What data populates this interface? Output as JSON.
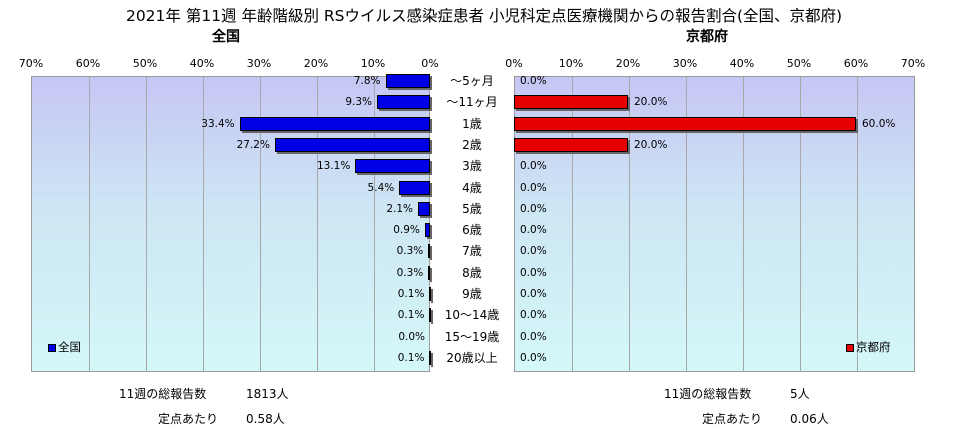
{
  "chart_data": {
    "type": "bar",
    "title": "2021年 第11週 年齢階級別 RSウイルス感染症患者 小児科定点医療機関からの報告割合(全国、京都府)",
    "xlim": [
      0,
      70
    ],
    "ticks": [
      "70%",
      "60%",
      "50%",
      "40%",
      "30%",
      "20%",
      "10%",
      "0%",
      "10%",
      "20%",
      "30%",
      "40%",
      "50%",
      "60%",
      "70%"
    ],
    "categories": [
      "～5ヶ月",
      "～11ヶ月",
      "1歳",
      "2歳",
      "3歳",
      "4歳",
      "5歳",
      "6歳",
      "7歳",
      "8歳",
      "9歳",
      "10～14歳",
      "15～19歳",
      "20歳以上"
    ],
    "series": [
      {
        "name": "全国",
        "subtitle": "全国",
        "color": "#0000e6",
        "values": [
          7.8,
          9.3,
          33.4,
          27.2,
          13.1,
          5.4,
          2.1,
          0.9,
          0.3,
          0.3,
          0.1,
          0.1,
          0.0,
          0.1
        ],
        "labels": [
          "7.8%",
          "9.3%",
          "33.4%",
          "27.2%",
          "13.1%",
          "5.4%",
          "2.1%",
          "0.9%",
          "0.3%",
          "0.3%",
          "0.1%",
          "0.1%",
          "0.0%",
          "0.1%"
        ]
      },
      {
        "name": "京都府",
        "subtitle": "京都府",
        "color": "#e60000",
        "values": [
          0.0,
          20.0,
          60.0,
          20.0,
          0.0,
          0.0,
          0.0,
          0.0,
          0.0,
          0.0,
          0.0,
          0.0,
          0.0,
          0.0
        ],
        "labels": [
          "0.0%",
          "20.0%",
          "60.0%",
          "20.0%",
          "0.0%",
          "0.0%",
          "0.0%",
          "0.0%",
          "0.0%",
          "0.0%",
          "0.0%",
          "0.0%",
          "0.0%",
          "0.0%"
        ]
      }
    ],
    "legend": "bottom-left / bottom-right"
  },
  "footer": {
    "left": {
      "total_label": "11週の総報告数",
      "total_value": "1813人",
      "per_label": "定点あたり",
      "per_value": "0.58人"
    },
    "right": {
      "total_label": "11週の総報告数",
      "total_value": "5人",
      "per_label": "定点あたり",
      "per_value": "0.06人"
    }
  }
}
